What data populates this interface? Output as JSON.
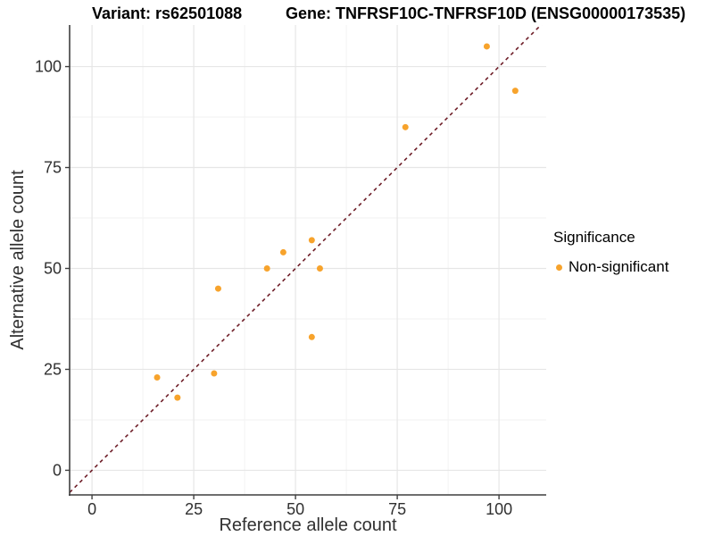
{
  "header": {
    "variant_title": "Variant: rs62501088",
    "gene_title": "Gene: TNFRSF10C-TNFRSF10D (ENSG00000173535)"
  },
  "chart_data": {
    "type": "scatter",
    "xlabel": "Reference allele count",
    "ylabel": "Alternative allele count",
    "xlim": [
      -5.5,
      111.6
    ],
    "ylim": [
      -6.1,
      110.3
    ],
    "x_ticks": [
      0,
      25,
      50,
      75,
      100
    ],
    "y_ticks": [
      0,
      25,
      50,
      75,
      100
    ],
    "x_minor_ticks": [
      12.5,
      37.5,
      62.5,
      87.5
    ],
    "y_minor_ticks": [
      12.5,
      37.5,
      62.5,
      87.5
    ],
    "grid": true,
    "series": [
      {
        "name": "Non-significant",
        "color": "#F7A32C",
        "points": [
          [
            16,
            23
          ],
          [
            21,
            18
          ],
          [
            30,
            24
          ],
          [
            31,
            45
          ],
          [
            43,
            50
          ],
          [
            47,
            54
          ],
          [
            54,
            33
          ],
          [
            54,
            57
          ],
          [
            56,
            50
          ],
          [
            77,
            85
          ],
          [
            97,
            105
          ],
          [
            104,
            94
          ]
        ]
      }
    ],
    "reference_line": {
      "type": "identity",
      "slope": 1,
      "intercept": 0,
      "style": "dashed",
      "color": "#6E1E28"
    },
    "legend": {
      "title": "Significance",
      "position": "right",
      "items": [
        {
          "label": "Non-significant",
          "color": "#F7A32C"
        }
      ]
    },
    "colors": {
      "axis_line": "#3F3F3F",
      "tick_label": "#303030",
      "grid_major": "#E6E6E6",
      "grid_minor": "#F2F2F2"
    }
  }
}
